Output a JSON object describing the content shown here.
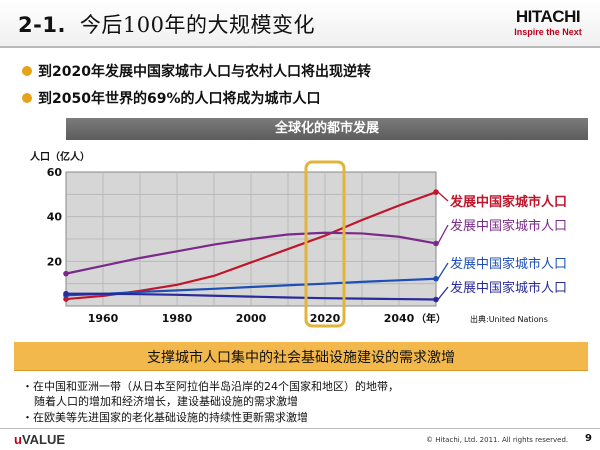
{
  "header": {
    "number": "2-1.",
    "title": "今后100年的大规模变化",
    "logo_main": "HITACHI",
    "logo_sub": "Inspire the Next"
  },
  "bullets": [
    "到2020年发展中国家城市人口与农村人口将出现逆转",
    "到2050年世界的69%的人口将成为城市人口"
  ],
  "chart_banner": "全球化的都市发展",
  "chart_data": {
    "type": "line",
    "ylabel": "人口（亿人）",
    "xlabel": "（年）",
    "ylim": [
      0,
      60
    ],
    "xlim": [
      1950,
      2050
    ],
    "xticks": [
      1960,
      1980,
      2000,
      2020,
      2040
    ],
    "yticks": [
      20,
      40,
      60
    ],
    "grid": true,
    "highlight_x": 2020,
    "series": [
      {
        "name": "发展中国家城市人口",
        "color": "#c0162b",
        "x": [
          1950,
          1960,
          1970,
          1980,
          1990,
          2000,
          2010,
          2020,
          2030,
          2040,
          2050
        ],
        "y": [
          3.1,
          4.5,
          6.8,
          9.5,
          13.5,
          19.5,
          25.5,
          31.5,
          38.5,
          45.0,
          51.0
        ]
      },
      {
        "name": "发展中国家城市人口",
        "color": "#7a2a8a",
        "x": [
          1950,
          1960,
          1970,
          1980,
          1990,
          2000,
          2010,
          2020,
          2030,
          2040,
          2050
        ],
        "y": [
          14.5,
          18.0,
          21.5,
          24.5,
          27.5,
          30.0,
          32.0,
          32.8,
          32.5,
          31.0,
          28.0
        ]
      },
      {
        "name": "发展中国家城市人口",
        "color": "#1e4fb5",
        "x": [
          1950,
          1960,
          1970,
          1980,
          1990,
          2000,
          2010,
          2020,
          2030,
          2040,
          2050
        ],
        "y": [
          4.8,
          5.4,
          6.3,
          7.0,
          7.7,
          8.5,
          9.3,
          10.0,
          10.8,
          11.5,
          12.2
        ]
      },
      {
        "name": "发展中国家城市人口",
        "color": "#2a2a9a",
        "x": [
          1950,
          1960,
          1970,
          1980,
          1990,
          2000,
          2010,
          2020,
          2030,
          2040,
          2050
        ],
        "y": [
          5.5,
          5.5,
          5.3,
          5.0,
          4.6,
          4.2,
          3.8,
          3.5,
          3.3,
          3.1,
          2.9
        ]
      }
    ]
  },
  "source": "出典:United Nations",
  "callout": "支撑城市人口集中的社会基础设施建设的需求激增",
  "notes": [
    "・在中国和亚洲一带（从日本至阿拉伯半岛沿岸的24个国家和地区）的地带，",
    "随着人口的增加和经济增长，建设基础设施的需求激增",
    "・在欧美等先进国家的老化基础设施的持续性更新需求激增"
  ],
  "footer": {
    "brand_u": "u",
    "brand_rest": "VALUE",
    "copyright": "© Hitachi, Ltd. 2011. All rights reserved.",
    "page": "9"
  },
  "colors": {
    "accent": "#e8a21a",
    "highlight_box": "#e2b43a",
    "callout": "#f2b84b"
  }
}
